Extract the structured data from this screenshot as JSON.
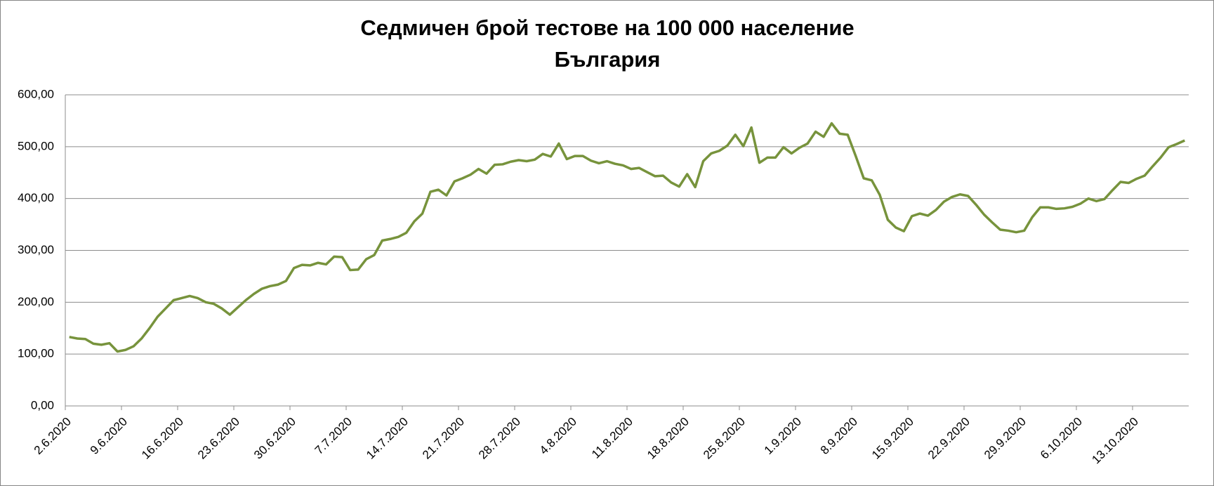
{
  "chart_data": {
    "type": "line",
    "title": "Седмичен брой тестове на 100 000 население",
    "subtitle": "България",
    "categories": [
      "2.6.2020",
      null,
      null,
      null,
      null,
      null,
      null,
      "9.6.2020",
      null,
      null,
      null,
      null,
      null,
      null,
      "16.6.2020",
      null,
      null,
      null,
      null,
      null,
      null,
      "23.6.2020",
      null,
      null,
      null,
      null,
      null,
      null,
      "30.6.2020",
      null,
      null,
      null,
      null,
      null,
      null,
      "7.7.2020",
      null,
      null,
      null,
      null,
      null,
      null,
      "14.7.2020",
      null,
      null,
      null,
      null,
      null,
      null,
      "21.7.2020",
      null,
      null,
      null,
      null,
      null,
      null,
      "28.7.2020",
      null,
      null,
      null,
      null,
      null,
      null,
      "4.8.2020",
      null,
      null,
      null,
      null,
      null,
      null,
      "11.8.2020",
      null,
      null,
      null,
      null,
      null,
      null,
      "18.8.2020",
      null,
      null,
      null,
      null,
      null,
      null,
      "25.8.2020",
      null,
      null,
      null,
      null,
      null,
      null,
      "1.9.2020",
      null,
      null,
      null,
      null,
      null,
      null,
      "8.9.2020",
      null,
      null,
      null,
      null,
      null,
      null,
      "15.9.2020",
      null,
      null,
      null,
      null,
      null,
      null,
      "22.9.2020",
      null,
      null,
      null,
      null,
      null,
      null,
      "29.9.2020",
      null,
      null,
      null,
      null,
      null,
      null,
      "6.10.2020",
      null,
      null,
      null,
      null,
      null,
      null,
      "13.10.2020",
      null,
      null,
      null,
      null,
      null,
      null
    ],
    "series": [
      {
        "color": "#77933c",
        "values": [
          133,
          130,
          129,
          120,
          118,
          121,
          105,
          108,
          115,
          130,
          150,
          172,
          188,
          204,
          208,
          212,
          208,
          200,
          197,
          188,
          176,
          190,
          204,
          216,
          226,
          231,
          234,
          241,
          266,
          272,
          271,
          276,
          273,
          288,
          287,
          262,
          263,
          283,
          291,
          319,
          322,
          326,
          334,
          356,
          371,
          413,
          417,
          406,
          433,
          439,
          446,
          457,
          448,
          465,
          466,
          471,
          474,
          472,
          475,
          486,
          481,
          506,
          476,
          482,
          482,
          473,
          468,
          472,
          467,
          464,
          457,
          459,
          451,
          443,
          444,
          431,
          423,
          447,
          422,
          472,
          487,
          492,
          502,
          523,
          501,
          537,
          469,
          479,
          479,
          499,
          487,
          498,
          506,
          529,
          519,
          545,
          525,
          523,
          482,
          439,
          435,
          407,
          359,
          344,
          337,
          366,
          371,
          367,
          378,
          394,
          403,
          408,
          405,
          388,
          369,
          354,
          340,
          338,
          335,
          338,
          364,
          383,
          383,
          380,
          381,
          384,
          390,
          400,
          395,
          399,
          416,
          432,
          430,
          438,
          444,
          462,
          479,
          499,
          505,
          512
        ]
      }
    ],
    "ylim": [
      0,
      600
    ],
    "yticks": [
      {
        "value": 0,
        "label": "0,00"
      },
      {
        "value": 100,
        "label": "100,00"
      },
      {
        "value": 200,
        "label": "200,00"
      },
      {
        "value": 300,
        "label": "300,00"
      },
      {
        "value": 400,
        "label": "400,00"
      },
      {
        "value": 500,
        "label": "500,00"
      },
      {
        "value": 600,
        "label": "600,00"
      }
    ],
    "grid": true
  }
}
